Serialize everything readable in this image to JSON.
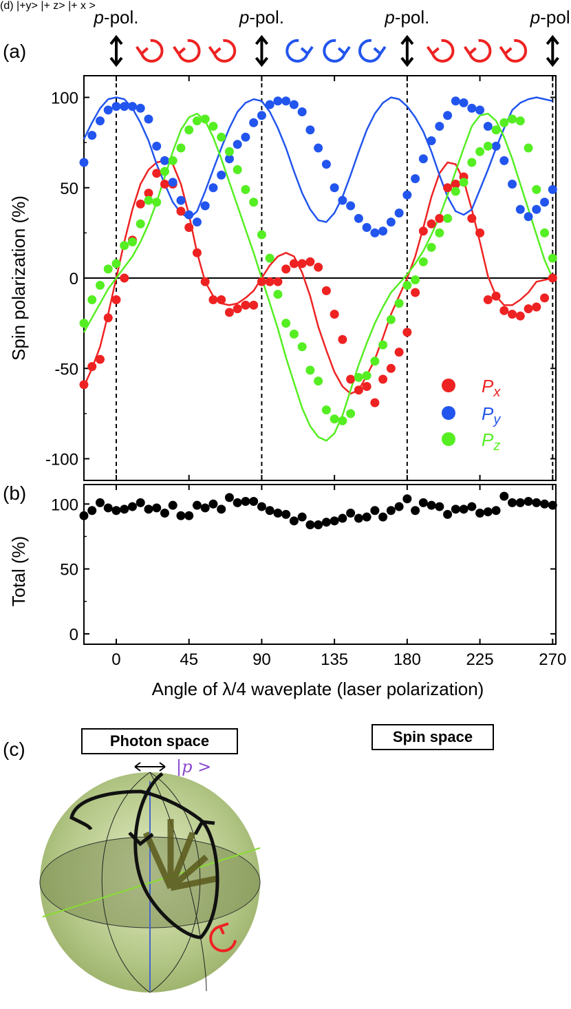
{
  "chart_data": [
    {
      "id": "a",
      "panel_label": "(a)",
      "type": "scatter",
      "ylabel": "Spin polarization (%)",
      "ylim": [
        -112,
        112
      ],
      "yticks": [
        100,
        50,
        0,
        -50,
        -100
      ],
      "ytick_labels": [
        "100",
        "50",
        "0",
        "-50",
        "-100"
      ],
      "xlim": [
        -20,
        272
      ],
      "top_annotations": {
        "p_pol_label": "-pol.",
        "p_pol_prefix": "p",
        "p_pol_positions": [
          0,
          90,
          180,
          270
        ],
        "symbols": [
          {
            "x": 0,
            "kind": "linear",
            "color": "#000000"
          },
          {
            "x": 22,
            "kind": "circ-right",
            "color": "#ee2222"
          },
          {
            "x": 45,
            "kind": "circ-right",
            "color": "#ee2222"
          },
          {
            "x": 67,
            "kind": "circ-right",
            "color": "#ee2222"
          },
          {
            "x": 90,
            "kind": "linear",
            "color": "#000000"
          },
          {
            "x": 112,
            "kind": "circ-left",
            "color": "#2255ee"
          },
          {
            "x": 135,
            "kind": "circ-left",
            "color": "#2255ee"
          },
          {
            "x": 157,
            "kind": "circ-left",
            "color": "#2255ee"
          },
          {
            "x": 180,
            "kind": "linear",
            "color": "#000000"
          },
          {
            "x": 202,
            "kind": "circ-right",
            "color": "#ee2222"
          },
          {
            "x": 225,
            "kind": "circ-right",
            "color": "#ee2222"
          },
          {
            "x": 247,
            "kind": "circ-right",
            "color": "#ee2222"
          },
          {
            "x": 270,
            "kind": "linear",
            "color": "#000000"
          }
        ]
      },
      "legend": {
        "placement": "lower-right",
        "entries": [
          {
            "name": "Px",
            "main": "P",
            "sub": "x",
            "color": "#ee2222"
          },
          {
            "name": "Py",
            "main": "P",
            "sub": "y",
            "color": "#2255ee"
          },
          {
            "name": "Pz",
            "main": "P",
            "sub": "z",
            "color": "#55ee22"
          }
        ]
      },
      "x": [
        -20,
        -15,
        -10,
        -5,
        0,
        5,
        10,
        15,
        20,
        25,
        30,
        35,
        40,
        45,
        50,
        55,
        60,
        65,
        70,
        75,
        80,
        85,
        90,
        95,
        100,
        105,
        110,
        115,
        120,
        125,
        130,
        135,
        140,
        145,
        150,
        155,
        160,
        165,
        170,
        175,
        180,
        185,
        190,
        195,
        200,
        205,
        210,
        215,
        220,
        225,
        230,
        235,
        240,
        245,
        250,
        255,
        260,
        265,
        270
      ],
      "series": [
        {
          "name": "Px",
          "color": "#ee2222",
          "values": [
            -59,
            -49,
            -45,
            -22,
            -12,
            0,
            21,
            41,
            47,
            58,
            52,
            52,
            37,
            28,
            14,
            -2,
            -12,
            -12,
            -19,
            -17,
            -15,
            -15,
            -2,
            -2,
            -2,
            5,
            8,
            8,
            9,
            6,
            -7,
            -20,
            -34,
            -56,
            -62,
            -60,
            -69,
            -56,
            -50,
            -41,
            -30,
            -8,
            26,
            30,
            33,
            50,
            52,
            56,
            33,
            25,
            -12,
            -10,
            -18,
            -20,
            -21,
            -17,
            -16,
            -11,
            0
          ],
          "fit": [
            -60,
            -50,
            -38,
            -20,
            0,
            20,
            38,
            52,
            60,
            64,
            65,
            63,
            52,
            35,
            14,
            -2,
            -10,
            -14,
            -15,
            -14,
            -11,
            -7,
            0,
            7,
            12,
            14,
            12,
            3,
            -10,
            -27,
            -40,
            -52,
            -60,
            -64,
            -62,
            -54,
            -45,
            -33,
            -20,
            -10,
            0,
            12,
            28,
            45,
            58,
            64,
            63,
            54,
            38,
            20,
            1,
            -10,
            -15,
            -15,
            -12,
            -8,
            -2,
            -1,
            0
          ]
        },
        {
          "name": "Py",
          "color": "#2255ee",
          "values": [
            64,
            79,
            87,
            93,
            95,
            95,
            95,
            94,
            88,
            73,
            65,
            53,
            43,
            35,
            31,
            40,
            50,
            57,
            66,
            74,
            78,
            86,
            90,
            96,
            98,
            98,
            96,
            92,
            82,
            72,
            63,
            50,
            43,
            40,
            33,
            28,
            25,
            26,
            31,
            36,
            46,
            55,
            66,
            76,
            84,
            90,
            98,
            97,
            94,
            93,
            84,
            73,
            65,
            52,
            38,
            34,
            38,
            42,
            49
          ],
          "fit": [
            77,
            86,
            94,
            99,
            100,
            99,
            94,
            86,
            76,
            63,
            52,
            42,
            36,
            33,
            37,
            48,
            60,
            72,
            83,
            92,
            97,
            99,
            98,
            92,
            83,
            72,
            59,
            47,
            38,
            32,
            31,
            36,
            45,
            57,
            70,
            82,
            91,
            97,
            100,
            99,
            95,
            89,
            81,
            70,
            57,
            45,
            37,
            35,
            38,
            49,
            60,
            72,
            83,
            93,
            97,
            99,
            100,
            99,
            98
          ]
        },
        {
          "name": "Pz",
          "color": "#55ee22",
          "values": [
            -25,
            -12,
            -4,
            5,
            8,
            18,
            20,
            30,
            43,
            42,
            59,
            65,
            72,
            82,
            87,
            88,
            84,
            78,
            70,
            60,
            49,
            42,
            24,
            11,
            -9,
            -25,
            -31,
            -38,
            -51,
            -57,
            -73,
            -78,
            -79,
            -75,
            -55,
            -54,
            -46,
            -37,
            -23,
            -14,
            -4,
            -1,
            9,
            17,
            25,
            33,
            48,
            53,
            64,
            70,
            73,
            82,
            86,
            88,
            87,
            72,
            49,
            25,
            11
          ],
          "fit": [
            -30,
            -22,
            -14,
            -6,
            0,
            6,
            12,
            20,
            30,
            42,
            56,
            70,
            82,
            89,
            91,
            87,
            78,
            66,
            53,
            40,
            27,
            14,
            0,
            -14,
            -28,
            -44,
            -58,
            -72,
            -82,
            -88,
            -90,
            -86,
            -76,
            -62,
            -48,
            -36,
            -25,
            -16,
            -8,
            -3,
            2,
            8,
            15,
            24,
            34,
            46,
            59,
            72,
            84,
            90,
            91,
            87,
            78,
            66,
            52,
            38,
            24,
            10,
            0
          ]
        }
      ]
    },
    {
      "id": "b",
      "panel_label": "(b)",
      "type": "scatter",
      "ylabel": "Total (%)",
      "xlabel": "Angle of λ/4 waveplate (laser polarization)",
      "ylim": [
        -8,
        115
      ],
      "yticks": [
        100,
        50,
        0
      ],
      "ytick_labels": [
        "100",
        "50",
        "0"
      ],
      "xlim": [
        -20,
        272
      ],
      "xticks": [
        0,
        45,
        90,
        135,
        180,
        225,
        270
      ],
      "xtick_labels": [
        "0",
        "45",
        "90",
        "135",
        "180",
        "225",
        "270"
      ],
      "x": [
        -20,
        -15,
        -10,
        -5,
        0,
        5,
        10,
        15,
        20,
        25,
        30,
        35,
        40,
        45,
        50,
        55,
        60,
        65,
        70,
        75,
        80,
        85,
        90,
        95,
        100,
        105,
        110,
        115,
        120,
        125,
        130,
        135,
        140,
        145,
        150,
        155,
        160,
        165,
        170,
        175,
        180,
        185,
        190,
        195,
        200,
        205,
        210,
        215,
        220,
        225,
        230,
        235,
        240,
        245,
        250,
        255,
        260,
        265,
        270
      ],
      "series": [
        {
          "name": "Total",
          "color": "#000000",
          "values": [
            91,
            95,
            101,
            97,
            95,
            96,
            98,
            101,
            96,
            97,
            93,
            99,
            91,
            91,
            99,
            97,
            100,
            96,
            105,
            101,
            102,
            102,
            98,
            95,
            93,
            92,
            87,
            90,
            84,
            84,
            86,
            87,
            89,
            93,
            89,
            90,
            95,
            90,
            95,
            98,
            104,
            95,
            101,
            99,
            98,
            92,
            96,
            96,
            98,
            93,
            94,
            95,
            106,
            101,
            101,
            102,
            101,
            100,
            99
          ]
        }
      ]
    }
  ],
  "panels": {
    "c": {
      "label": "(c)",
      "title": "Photon space",
      "pole_label": "|p >"
    },
    "d": {
      "label": "(d)",
      "title": "Spin space",
      "y_label": "|+y>",
      "z_label": "|+ z>",
      "x_label": "|+ x >"
    }
  }
}
